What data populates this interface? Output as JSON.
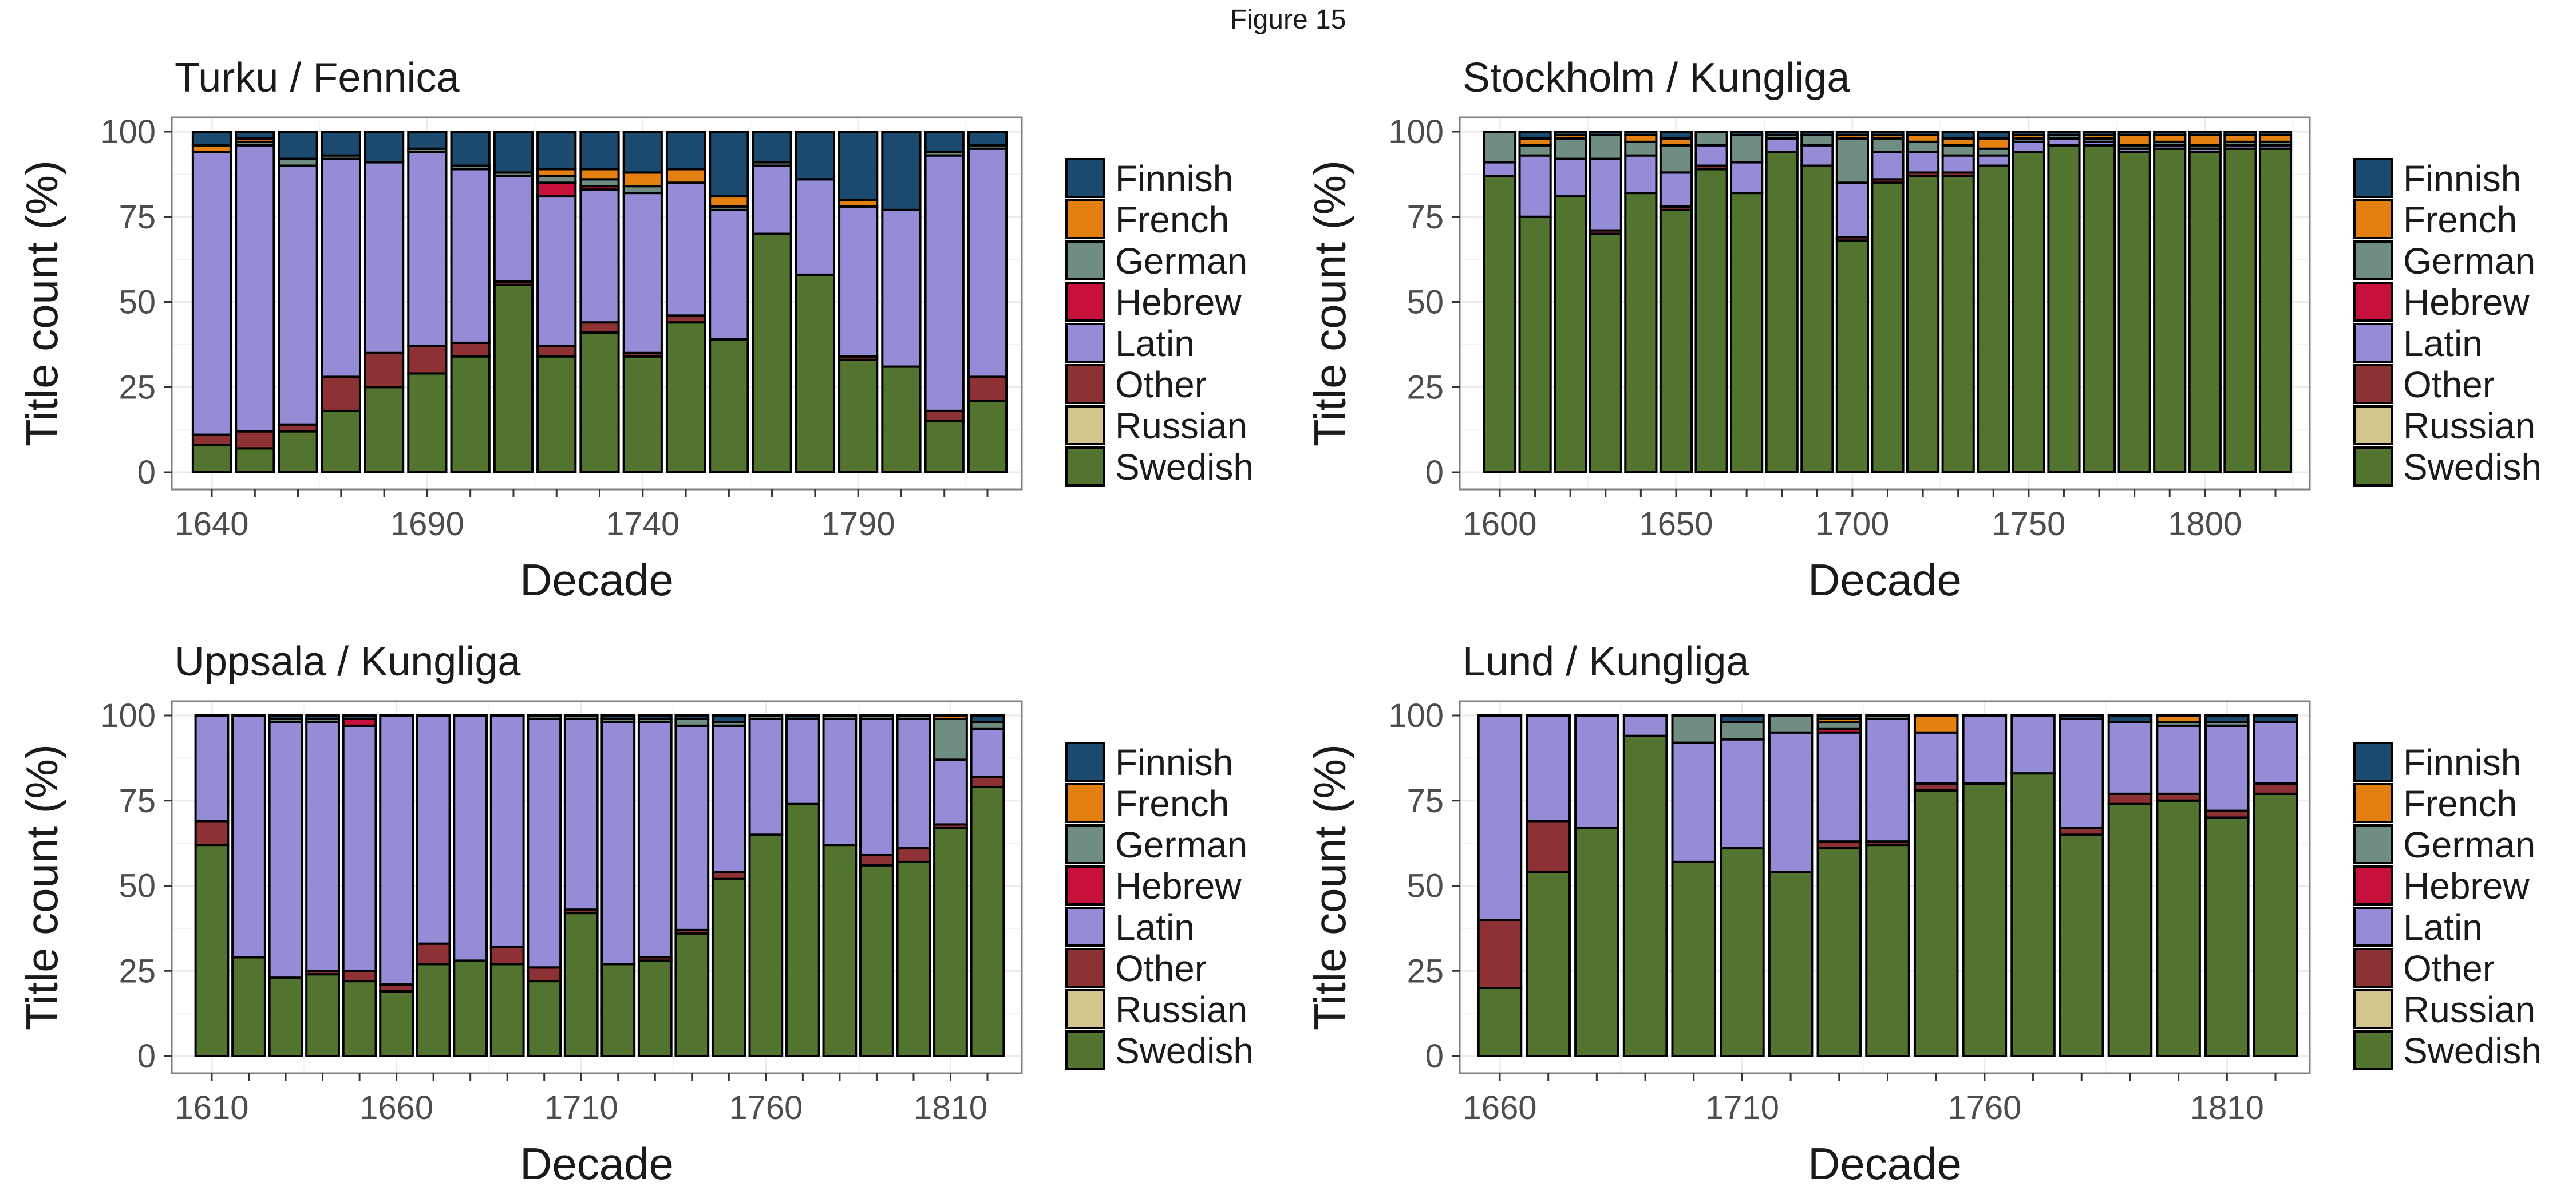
{
  "figure": {
    "title": "Figure 15"
  },
  "colors": {
    "Finnish": "#1b4a6e",
    "French": "#e4800f",
    "German": "#6f8d80",
    "Hebrew": "#c8103c",
    "Latin": "#948cd6",
    "Other": "#8e3134",
    "Russian": "#d2c68c",
    "Swedish": "#52742e"
  },
  "chart_data": [
    {
      "type": "bar",
      "stacked": true,
      "title": "Turku / Fennica",
      "xlabel": "Decade",
      "ylabel": "Title count (%)",
      "ylim": [
        0,
        100
      ],
      "yticks": [
        0,
        25,
        50,
        75,
        100
      ],
      "xticks": [
        1640,
        1690,
        1740,
        1790
      ],
      "legend": [
        "Finnish",
        "French",
        "German",
        "Hebrew",
        "Latin",
        "Other",
        "Russian",
        "Swedish"
      ],
      "legend_position": "right",
      "grid": true,
      "categories": [
        1640,
        1650,
        1660,
        1670,
        1680,
        1690,
        1700,
        1710,
        1720,
        1730,
        1740,
        1750,
        1760,
        1770,
        1780,
        1790,
        1800,
        1810,
        1820
      ],
      "series": [
        {
          "name": "Swedish",
          "values": [
            8,
            7,
            12,
            18,
            25,
            29,
            34,
            55,
            34,
            41,
            34,
            44,
            39,
            70,
            58,
            33,
            31,
            15,
            21
          ]
        },
        {
          "name": "Russian",
          "values": [
            0,
            0,
            0,
            0,
            0,
            0,
            0,
            0,
            0,
            0,
            0,
            0,
            0,
            0,
            0,
            0,
            0,
            0,
            0
          ]
        },
        {
          "name": "Other",
          "values": [
            3,
            5,
            2,
            10,
            10,
            8,
            4,
            1,
            3,
            3,
            1,
            2,
            0,
            0,
            0,
            1,
            0,
            3,
            7
          ]
        },
        {
          "name": "Latin",
          "values": [
            83,
            84,
            76,
            64,
            56,
            57,
            51,
            31,
            44,
            39,
            47,
            39,
            38,
            20,
            28,
            44,
            46,
            75,
            67
          ]
        },
        {
          "name": "Hebrew",
          "values": [
            0,
            0,
            0,
            0,
            0,
            0,
            0,
            0,
            4,
            1,
            0,
            0,
            0,
            0,
            0,
            0,
            0,
            0,
            0
          ]
        },
        {
          "name": "German",
          "values": [
            0,
            1,
            2,
            1,
            0,
            1,
            1,
            1,
            2,
            2,
            2,
            0,
            1,
            1,
            0,
            0,
            0,
            1,
            1
          ]
        },
        {
          "name": "French",
          "values": [
            2,
            1,
            0,
            0,
            0,
            0,
            0,
            0,
            2,
            3,
            4,
            4,
            3,
            0,
            0,
            2,
            0,
            0,
            0
          ]
        },
        {
          "name": "Finnish",
          "values": [
            4,
            2,
            8,
            7,
            9,
            5,
            10,
            12,
            11,
            11,
            12,
            11,
            19,
            9,
            14,
            20,
            23,
            6,
            4
          ]
        }
      ]
    },
    {
      "type": "bar",
      "stacked": true,
      "title": "Stockholm / Kungliga",
      "xlabel": "Decade",
      "ylabel": "Title count (%)",
      "ylim": [
        0,
        100
      ],
      "yticks": [
        0,
        25,
        50,
        75,
        100
      ],
      "xticks": [
        1600,
        1650,
        1700,
        1750,
        1800
      ],
      "legend": [
        "Finnish",
        "French",
        "German",
        "Hebrew",
        "Latin",
        "Other",
        "Russian",
        "Swedish"
      ],
      "legend_position": "right",
      "grid": true,
      "categories": [
        1600,
        1610,
        1620,
        1630,
        1640,
        1650,
        1660,
        1670,
        1680,
        1690,
        1700,
        1710,
        1720,
        1730,
        1740,
        1750,
        1760,
        1770,
        1780,
        1790,
        1800,
        1810,
        1820
      ],
      "series": [
        {
          "name": "Swedish",
          "values": [
            87,
            75,
            81,
            70,
            82,
            77,
            89,
            82,
            94,
            90,
            68,
            85,
            87,
            87,
            90,
            94,
            96,
            96,
            94,
            95,
            94,
            95,
            95
          ]
        },
        {
          "name": "Russian",
          "values": [
            0,
            0,
            0,
            0,
            0,
            0,
            0,
            0,
            0,
            0,
            0,
            0,
            0,
            0,
            0,
            0,
            0,
            0,
            0,
            0,
            0,
            0,
            0
          ]
        },
        {
          "name": "Other",
          "values": [
            0,
            0,
            0,
            1,
            0,
            1,
            1,
            0,
            0,
            0,
            1,
            1,
            1,
            1,
            0,
            0,
            0,
            0,
            0,
            0,
            0,
            0,
            0
          ]
        },
        {
          "name": "Latin",
          "values": [
            4,
            18,
            11,
            21,
            11,
            10,
            6,
            9,
            4,
            6,
            16,
            8,
            6,
            5,
            3,
            3,
            2,
            1,
            1,
            1,
            1,
            1,
            1
          ]
        },
        {
          "name": "Hebrew",
          "values": [
            0,
            0,
            0,
            0,
            0,
            0,
            0,
            0,
            0,
            0,
            0,
            0,
            0,
            0,
            0,
            0,
            0,
            0,
            0,
            0,
            0,
            0,
            0
          ]
        },
        {
          "name": "German",
          "values": [
            9,
            3,
            6,
            7,
            4,
            8,
            4,
            8,
            1,
            3,
            13,
            4,
            3,
            3,
            2,
            1,
            1,
            1,
            1,
            1,
            1,
            1,
            1
          ]
        },
        {
          "name": "French",
          "values": [
            0,
            2,
            1,
            0,
            2,
            2,
            0,
            0,
            0,
            0,
            1,
            1,
            2,
            2,
            3,
            1,
            0,
            1,
            3,
            2,
            3,
            2,
            2
          ]
        },
        {
          "name": "Finnish",
          "values": [
            0,
            2,
            1,
            1,
            1,
            2,
            0,
            1,
            1,
            1,
            1,
            1,
            1,
            2,
            2,
            1,
            1,
            1,
            1,
            1,
            1,
            1,
            1
          ]
        }
      ]
    },
    {
      "type": "bar",
      "stacked": true,
      "title": "Uppsala / Kungliga",
      "xlabel": "Decade",
      "ylabel": "Title count (%)",
      "ylim": [
        0,
        100
      ],
      "yticks": [
        0,
        25,
        50,
        75,
        100
      ],
      "xticks": [
        1610,
        1660,
        1710,
        1760,
        1810
      ],
      "legend": [
        "Finnish",
        "French",
        "German",
        "Hebrew",
        "Latin",
        "Other",
        "Russian",
        "Swedish"
      ],
      "legend_position": "right",
      "grid": true,
      "categories": [
        1610,
        1620,
        1630,
        1640,
        1650,
        1660,
        1670,
        1680,
        1690,
        1700,
        1710,
        1720,
        1730,
        1740,
        1750,
        1760,
        1770,
        1780,
        1790,
        1800,
        1810,
        1820
      ],
      "series": [
        {
          "name": "Swedish",
          "values": [
            62,
            29,
            23,
            24,
            22,
            19,
            27,
            28,
            27,
            22,
            42,
            27,
            28,
            36,
            52,
            65,
            74,
            62,
            56,
            57,
            67,
            79
          ]
        },
        {
          "name": "Russian",
          "values": [
            0,
            0,
            0,
            0,
            0,
            0,
            0,
            0,
            0,
            0,
            0,
            0,
            0,
            0,
            0,
            0,
            0,
            0,
            0,
            0,
            0,
            0
          ]
        },
        {
          "name": "Other",
          "values": [
            7,
            0,
            0,
            1,
            3,
            2,
            6,
            0,
            5,
            4,
            1,
            0,
            1,
            1,
            2,
            0,
            0,
            0,
            3,
            4,
            1,
            3
          ]
        },
        {
          "name": "Latin",
          "values": [
            31,
            71,
            75,
            73,
            72,
            79,
            67,
            72,
            68,
            73,
            56,
            71,
            69,
            60,
            43,
            34,
            25,
            37,
            40,
            38,
            19,
            14
          ]
        },
        {
          "name": "Hebrew",
          "values": [
            0,
            0,
            0,
            0,
            2,
            0,
            0,
            0,
            0,
            0,
            0,
            0,
            0,
            0,
            0,
            0,
            0,
            0,
            0,
            0,
            0,
            0
          ]
        },
        {
          "name": "German",
          "values": [
            0,
            0,
            1,
            1,
            0,
            0,
            0,
            0,
            0,
            1,
            1,
            1,
            1,
            2,
            1,
            1,
            0,
            1,
            1,
            1,
            12,
            2
          ]
        },
        {
          "name": "French",
          "values": [
            0,
            0,
            0,
            0,
            0,
            0,
            0,
            0,
            0,
            0,
            0,
            0,
            0,
            0,
            0,
            0,
            0,
            0,
            0,
            0,
            1,
            0
          ]
        },
        {
          "name": "Finnish",
          "values": [
            0,
            0,
            1,
            1,
            1,
            0,
            0,
            0,
            0,
            0,
            0,
            1,
            1,
            1,
            2,
            0,
            1,
            0,
            0,
            0,
            0,
            2
          ]
        }
      ]
    },
    {
      "type": "bar",
      "stacked": true,
      "title": "Lund / Kungliga",
      "xlabel": "Decade",
      "ylabel": "Title count (%)",
      "ylim": [
        0,
        100
      ],
      "yticks": [
        0,
        25,
        50,
        75,
        100
      ],
      "xticks": [
        1660,
        1710,
        1760,
        1810
      ],
      "legend": [
        "Finnish",
        "French",
        "German",
        "Hebrew",
        "Latin",
        "Other",
        "Russian",
        "Swedish"
      ],
      "legend_position": "right",
      "grid": true,
      "categories": [
        1660,
        1670,
        1680,
        1690,
        1700,
        1710,
        1720,
        1730,
        1740,
        1750,
        1760,
        1770,
        1780,
        1790,
        1800,
        1810,
        1820
      ],
      "series": [
        {
          "name": "Swedish",
          "values": [
            20,
            54,
            67,
            94,
            57,
            61,
            54,
            61,
            62,
            78,
            80,
            83,
            65,
            74,
            75,
            70,
            77
          ]
        },
        {
          "name": "Russian",
          "values": [
            0,
            0,
            0,
            0,
            0,
            0,
            0,
            0,
            0,
            0,
            0,
            0,
            0,
            0,
            0,
            0,
            0
          ]
        },
        {
          "name": "Other",
          "values": [
            20,
            15,
            0,
            0,
            0,
            0,
            0,
            2,
            1,
            2,
            0,
            0,
            2,
            3,
            2,
            2,
            3
          ]
        },
        {
          "name": "Latin",
          "values": [
            60,
            31,
            33,
            6,
            35,
            32,
            41,
            32,
            36,
            15,
            20,
            17,
            32,
            21,
            20,
            25,
            18
          ]
        },
        {
          "name": "Hebrew",
          "values": [
            0,
            0,
            0,
            0,
            0,
            0,
            0,
            1,
            0,
            0,
            0,
            0,
            0,
            0,
            0,
            0,
            0
          ]
        },
        {
          "name": "German",
          "values": [
            0,
            0,
            0,
            0,
            8,
            5,
            5,
            2,
            1,
            0,
            0,
            0,
            0,
            0,
            1,
            1,
            0
          ]
        },
        {
          "name": "French",
          "values": [
            0,
            0,
            0,
            0,
            0,
            0,
            0,
            1,
            0,
            5,
            0,
            0,
            0,
            0,
            2,
            0,
            0
          ]
        },
        {
          "name": "Finnish",
          "values": [
            0,
            0,
            0,
            0,
            0,
            2,
            0,
            1,
            0,
            0,
            0,
            0,
            1,
            2,
            0,
            2,
            2
          ]
        }
      ]
    }
  ]
}
